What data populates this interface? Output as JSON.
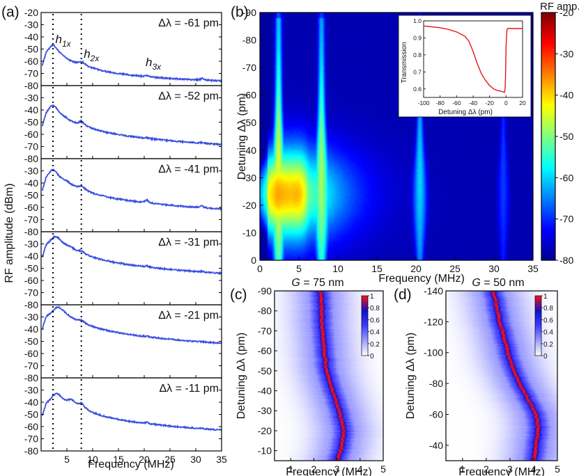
{
  "chart_data": [
    {
      "panel": "(a)",
      "type": "line",
      "xlabel": "Frequency (MHz)",
      "ylabel": "RF amplitude (dBm)",
      "xlim": [
        0,
        35
      ],
      "x_ticks": [
        5,
        10,
        15,
        20,
        25,
        30,
        35
      ],
      "dotted_lines_x": [
        2.3,
        7.8
      ],
      "harmonic_labels": [
        {
          "base": "h",
          "sub": "1x",
          "x": 2.5,
          "y": -45
        },
        {
          "base": "h",
          "sub": "2x",
          "x": 8.0,
          "y": -57
        },
        {
          "base": "h",
          "sub": "3x",
          "x": 20.0,
          "y": -64
        }
      ],
      "subplots": [
        {
          "label": "Δλ = -61 pm",
          "ylim": [
            -80,
            -20
          ],
          "ticks": [
            -20,
            -30,
            -40,
            -50,
            -60,
            -70,
            -80
          ],
          "peaks": [
            [
              2.3,
              -47,
              1.1
            ],
            [
              7.8,
              -63,
              0.9
            ],
            [
              20.5,
              -78,
              0.5
            ],
            [
              31.2,
              -79.5,
              0.4
            ]
          ],
          "floor": -79,
          "slope": 0.01,
          "shoulder": 0
        },
        {
          "label": "Δλ = -52 pm",
          "ylim": [
            -80,
            -20
          ],
          "ticks": [
            -30,
            -40,
            -50,
            -60,
            -70,
            -80
          ],
          "peaks": [
            [
              2.3,
              -36,
              1.0
            ],
            [
              4.5,
              -54,
              1.2
            ],
            [
              7.8,
              -52,
              0.8
            ],
            [
              20.5,
              -71,
              0.5
            ],
            [
              31.2,
              -75,
              0.4
            ]
          ],
          "floor": -74,
          "slope": 0.18,
          "shoulder": 12
        },
        {
          "label": "Δλ = -41 pm",
          "ylim": [
            -80,
            -20
          ],
          "ticks": [
            -30,
            -40,
            -50,
            -60,
            -70,
            -80
          ],
          "peaks": [
            [
              2.3,
              -29,
              1.0
            ],
            [
              4.8,
              -43,
              1.0
            ],
            [
              7.8,
              -45,
              0.8
            ],
            [
              20.5,
              -58,
              0.5
            ],
            [
              31.2,
              -64,
              0.4
            ]
          ],
          "floor": -69,
          "slope": 0.2,
          "shoulder": 22
        },
        {
          "label": "Δλ = -31 pm",
          "ylim": [
            -80,
            -20
          ],
          "ticks": [
            -30,
            -40,
            -50,
            -60,
            -70,
            -80
          ],
          "peaks": [
            [
              2.8,
              -24,
              1.3
            ],
            [
              5.5,
              -37,
              1.1
            ],
            [
              7.8,
              -40,
              0.8
            ],
            [
              20.5,
              -56,
              0.5
            ],
            [
              31.2,
              -62,
              0.4
            ]
          ],
          "floor": -68,
          "slope": 0.15,
          "shoulder": 24
        },
        {
          "label": "Δλ = -21 pm",
          "ylim": [
            -80,
            -20
          ],
          "ticks": [
            -30,
            -40,
            -50,
            -60,
            -70,
            -80
          ],
          "peaks": [
            [
              3.3,
              -22,
              1.4
            ],
            [
              7.8,
              -36,
              0.8
            ],
            [
              20.5,
              -55,
              0.5
            ],
            [
              31.2,
              -63,
              0.4
            ]
          ],
          "floor": -67,
          "slope": 0.13,
          "shoulder": 26
        },
        {
          "label": "Δλ = -11 pm",
          "ylim": [
            -80,
            -20
          ],
          "ticks": [
            -30,
            -40,
            -50,
            -60,
            -70,
            -80
          ],
          "peaks": [
            [
              3.0,
              -33,
              1.2
            ],
            [
              5.8,
              -39,
              1.0
            ],
            [
              7.8,
              -43,
              0.7
            ],
            [
              20.5,
              -63,
              0.5
            ],
            [
              31.2,
              -71,
              0.4
            ]
          ],
          "floor": -71,
          "slope": 0.12,
          "shoulder": 18
        }
      ]
    },
    {
      "panel": "(b)",
      "type": "heatmap",
      "xlabel": "Frequency (MHz)",
      "ylabel": "Detuning Δλ (pm)",
      "xlim": [
        0,
        35
      ],
      "ylim": [
        -90,
        0
      ],
      "x_ticks": [
        0,
        5,
        10,
        15,
        20,
        25,
        30,
        35
      ],
      "y_ticks": [
        -90,
        -80,
        -70,
        -60,
        -50,
        -40,
        -30,
        -20,
        -10,
        0
      ],
      "colorbar": {
        "label": "RF amp.",
        "min": -80,
        "max": -20,
        "ticks": [
          -20,
          -30,
          -40,
          -50,
          -60,
          -70,
          -80
        ]
      },
      "inset": {
        "type": "line",
        "xlabel": "Detuning Δλ (pm)",
        "ylabel": "Transmission",
        "xlim": [
          -100,
          20
        ],
        "ylim": [
          0.55,
          1.0
        ],
        "x_ticks": [
          -100,
          -80,
          -60,
          -40,
          -20,
          0,
          20
        ],
        "y_ticks": [
          1.0,
          0.9,
          0.8,
          0.7,
          0.6
        ],
        "x": [
          -100,
          -90,
          -80,
          -70,
          -60,
          -50,
          -45,
          -40,
          -35,
          -30,
          -25,
          -20,
          -15,
          -10,
          -5,
          -2,
          -1,
          0,
          1,
          2,
          5,
          10,
          20
        ],
        "y": [
          0.97,
          0.965,
          0.96,
          0.95,
          0.935,
          0.91,
          0.88,
          0.82,
          0.75,
          0.69,
          0.65,
          0.62,
          0.6,
          0.59,
          0.585,
          0.58,
          0.6,
          0.85,
          0.95,
          0.955,
          0.955,
          0.955,
          0.955
        ]
      }
    },
    {
      "panel": "(c)",
      "type": "heatmap",
      "title_italic": "G",
      "title_rest": " = 75 nm",
      "xlabel": "Frequency (MHz)",
      "ylabel": "Detuning Δλ (pm)",
      "xlim": [
        0.3,
        5
      ],
      "ylim": [
        -90,
        -5
      ],
      "x_ticks": [
        1,
        2,
        3,
        4,
        5
      ],
      "y_ticks": [
        -90,
        -80,
        -70,
        -60,
        -50,
        -40,
        -30,
        -20,
        -10
      ],
      "colorbar": {
        "min": 0,
        "max": 1,
        "ticks": [
          1,
          0.8,
          0.6,
          0.4,
          0.2,
          0
        ]
      },
      "ridge_detuning": [
        -90,
        -75,
        -60,
        -50,
        -40,
        -30,
        -20,
        -12,
        -5
      ],
      "ridge_frequency": [
        2.3,
        2.35,
        2.45,
        2.55,
        2.8,
        3.1,
        3.3,
        3.2,
        3.0
      ]
    },
    {
      "panel": "(d)",
      "type": "heatmap",
      "title_italic": "G",
      "title_rest": " = 50 nm",
      "xlabel": "Frequency (MHz)",
      "ylabel": "Detuning Δλ (pm)",
      "xlim": [
        0.3,
        5
      ],
      "ylim": [
        -140,
        -30
      ],
      "x_ticks": [
        1,
        2,
        3,
        4,
        5
      ],
      "y_ticks": [
        -140,
        -120,
        -100,
        -80,
        -60,
        -40
      ],
      "colorbar": {
        "min": 0,
        "max": 1,
        "ticks": [
          1,
          0.8,
          0.6,
          0.4,
          0.2,
          0
        ]
      },
      "ridge_detuning": [
        -140,
        -125,
        -110,
        -95,
        -80,
        -70,
        -60,
        -50,
        -40,
        -30
      ],
      "ridge_frequency": [
        2.3,
        2.5,
        2.75,
        3.0,
        3.4,
        3.75,
        4.1,
        4.2,
        4.1,
        4.0
      ]
    }
  ]
}
